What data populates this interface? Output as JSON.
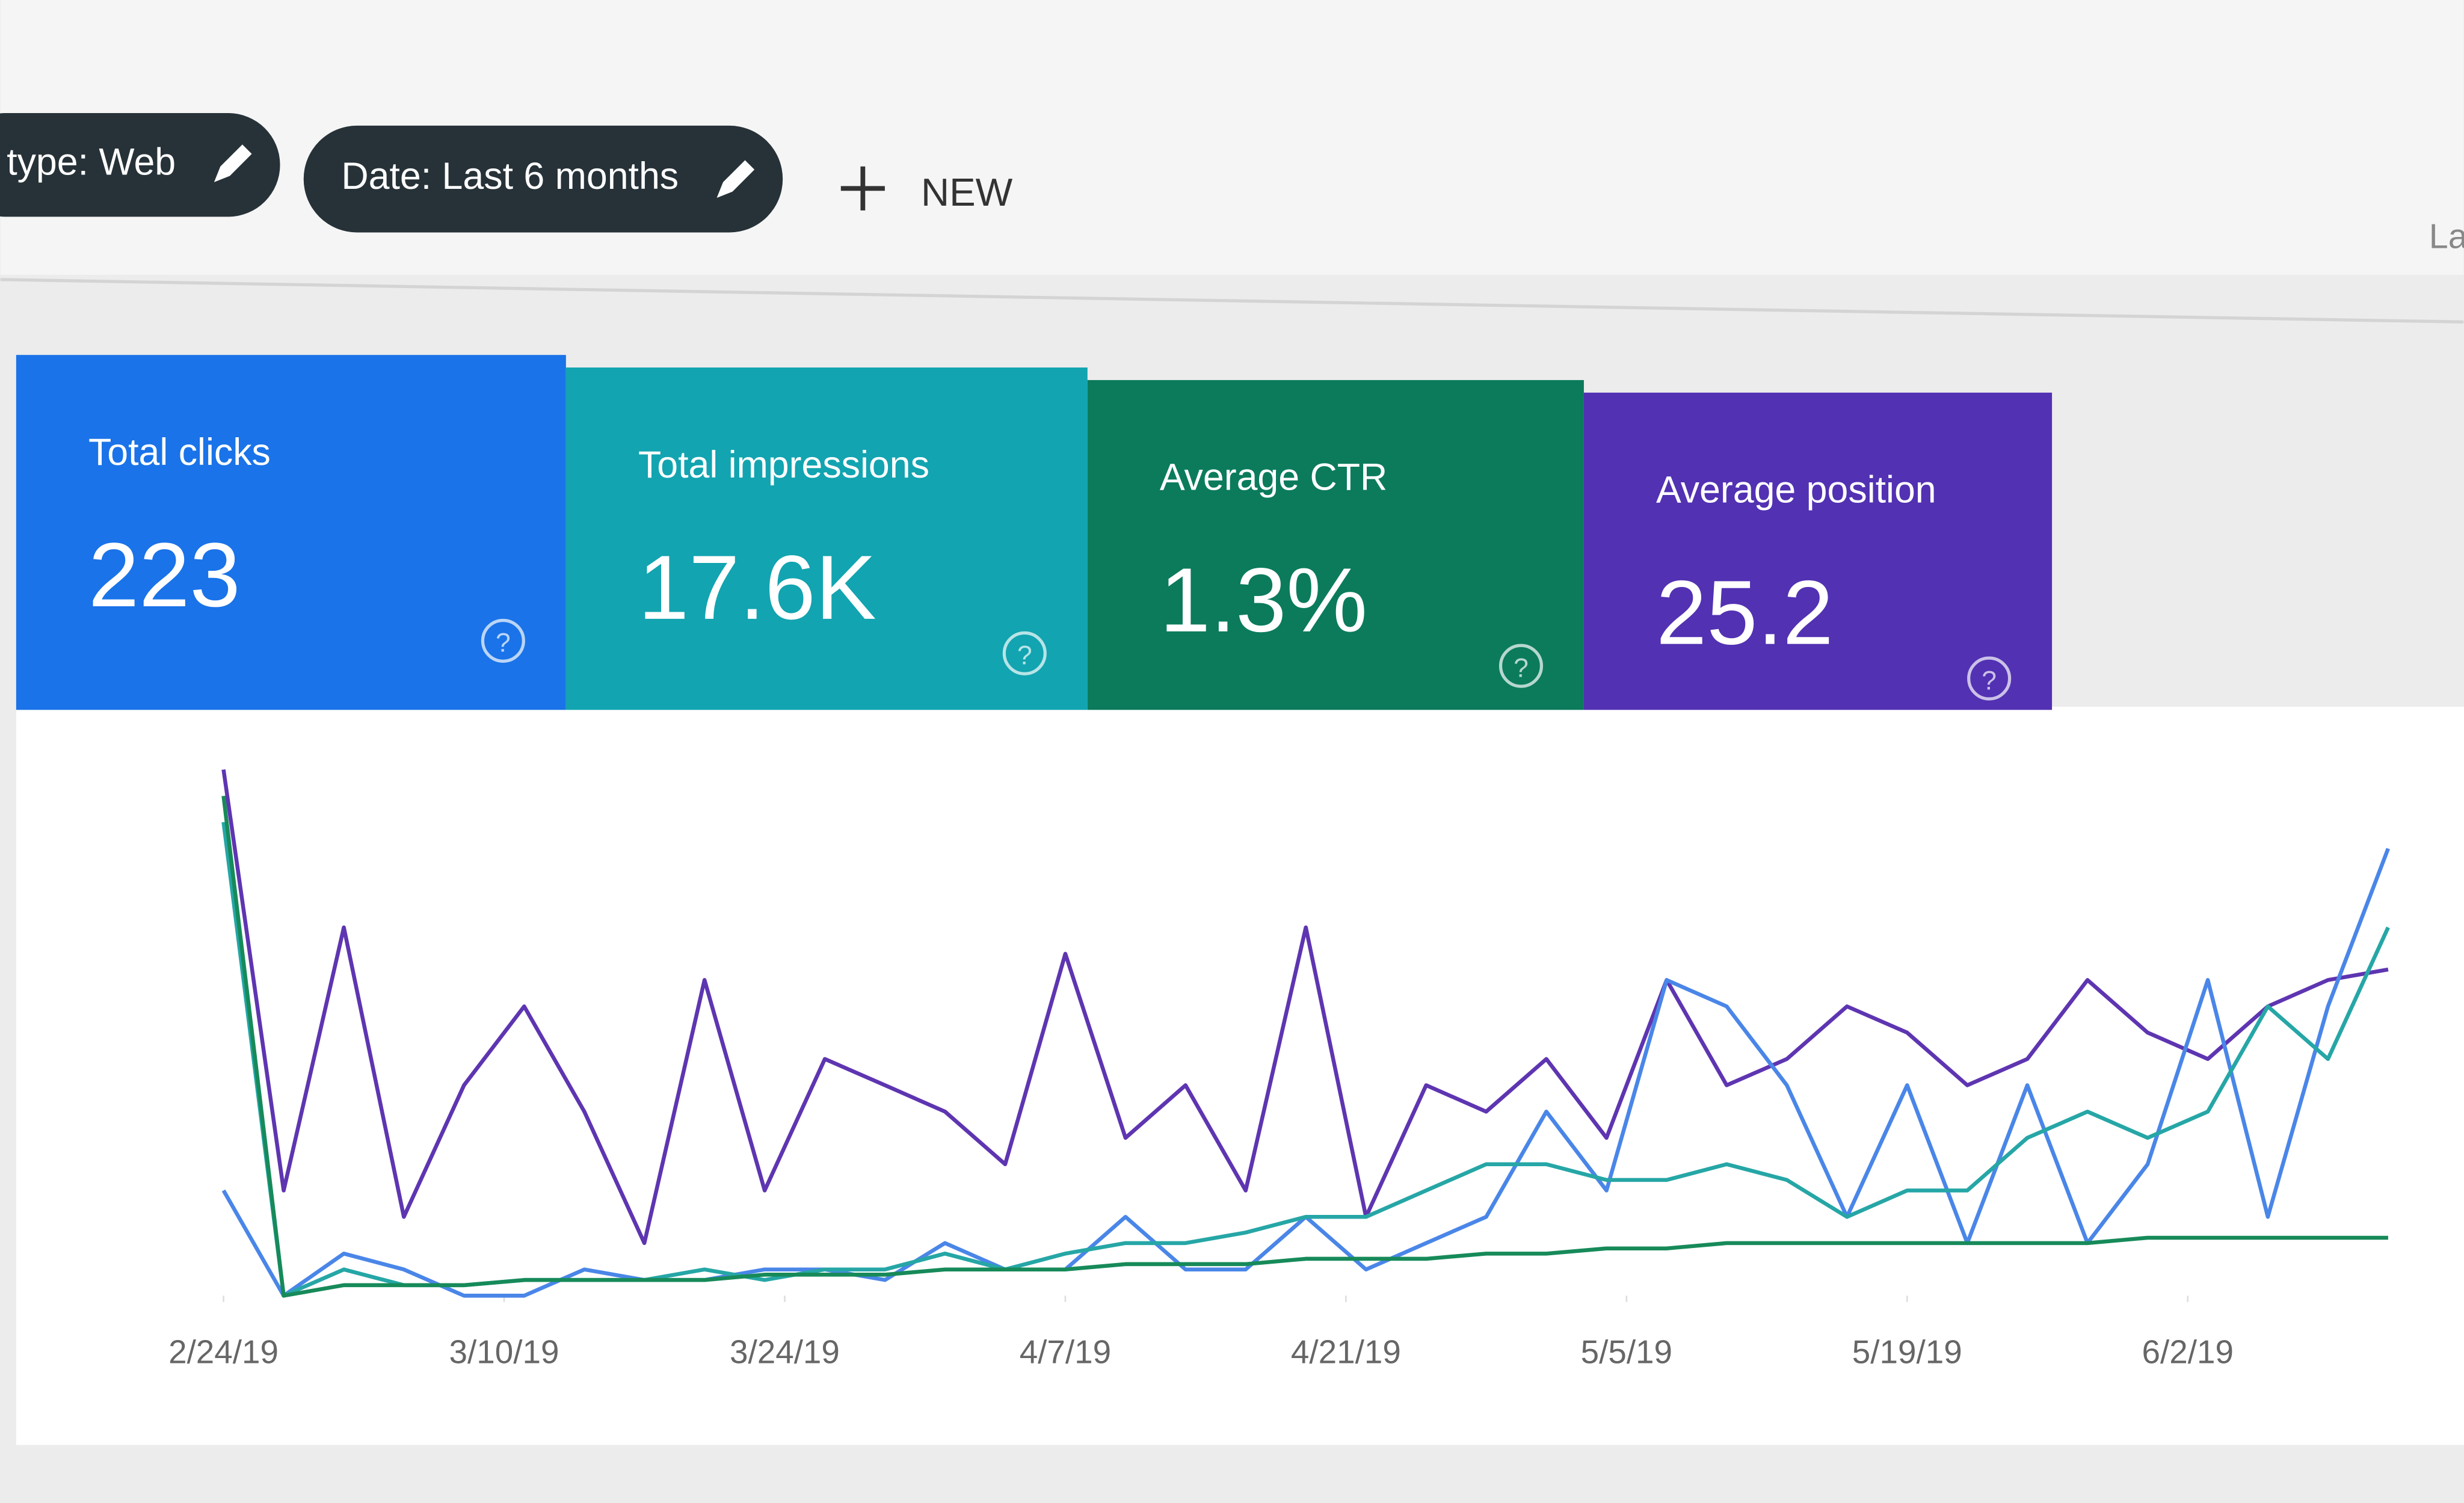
{
  "header": {
    "chips": [
      "type: Web",
      "Date: Last 6 months"
    ],
    "new_button": "NEW",
    "cut_off_text": "La"
  },
  "cards": [
    {
      "label": "Total clicks",
      "value": "223",
      "color": "#1a73e8"
    },
    {
      "label": "Total impressions",
      "value": "17.6K",
      "color": "#12a4b0"
    },
    {
      "label": "Average CTR",
      "value": "1.3%",
      "color": "#0b7b5c"
    },
    {
      "label": "Average position",
      "value": "25.2",
      "color": "#5231b3"
    }
  ],
  "chart_data": {
    "type": "line",
    "x": [
      0,
      3,
      6,
      9,
      12,
      15,
      18,
      21,
      24,
      27,
      30,
      33,
      36,
      39,
      42,
      45,
      48,
      51,
      54,
      57,
      60,
      63,
      66,
      69,
      72,
      75,
      78,
      81,
      84,
      87,
      90,
      93,
      96,
      99,
      102,
      105,
      108
    ],
    "xlim": [
      0,
      108
    ],
    "ylim": [
      0,
      100
    ],
    "xticks": [
      {
        "value": 0,
        "label": "2/24/19"
      },
      {
        "value": 14,
        "label": "3/10/19"
      },
      {
        "value": 28,
        "label": "3/24/19"
      },
      {
        "value": 42,
        "label": "4/7/19"
      },
      {
        "value": 56,
        "label": "4/21/19"
      },
      {
        "value": 70,
        "label": "5/5/19"
      },
      {
        "value": 84,
        "label": "5/19/19"
      },
      {
        "value": 98,
        "label": "6/2/19"
      }
    ],
    "series": [
      {
        "color": "#5e35b1",
        "values": [
          100,
          20,
          70,
          15,
          40,
          55,
          35,
          10,
          60,
          20,
          45,
          40,
          35,
          25,
          65,
          30,
          40,
          20,
          70,
          15,
          40,
          35,
          45,
          30,
          60,
          40,
          45,
          55,
          50,
          40,
          45,
          60,
          50,
          45,
          55,
          60,
          62
        ]
      },
      {
        "color": "#4a86e8",
        "values": [
          20,
          0,
          8,
          5,
          0,
          0,
          5,
          3,
          3,
          5,
          5,
          3,
          10,
          5,
          5,
          15,
          5,
          5,
          15,
          5,
          10,
          15,
          35,
          20,
          60,
          55,
          40,
          15,
          40,
          10,
          40,
          10,
          25,
          60,
          15,
          55,
          85
        ]
      },
      {
        "color": "#26a6a6",
        "values": [
          90,
          0,
          5,
          2,
          2,
          3,
          3,
          3,
          5,
          3,
          5,
          5,
          8,
          5,
          8,
          10,
          10,
          12,
          15,
          15,
          20,
          25,
          25,
          22,
          22,
          25,
          22,
          15,
          20,
          20,
          30,
          35,
          30,
          35,
          55,
          45,
          70
        ]
      },
      {
        "color": "#178a5a",
        "values": [
          95,
          0,
          2,
          2,
          2,
          3,
          3,
          3,
          3,
          4,
          4,
          4,
          5,
          5,
          5,
          6,
          6,
          6,
          7,
          7,
          7,
          8,
          8,
          9,
          9,
          10,
          10,
          10,
          10,
          10,
          10,
          10,
          11,
          11,
          11,
          11,
          11
        ]
      }
    ]
  }
}
